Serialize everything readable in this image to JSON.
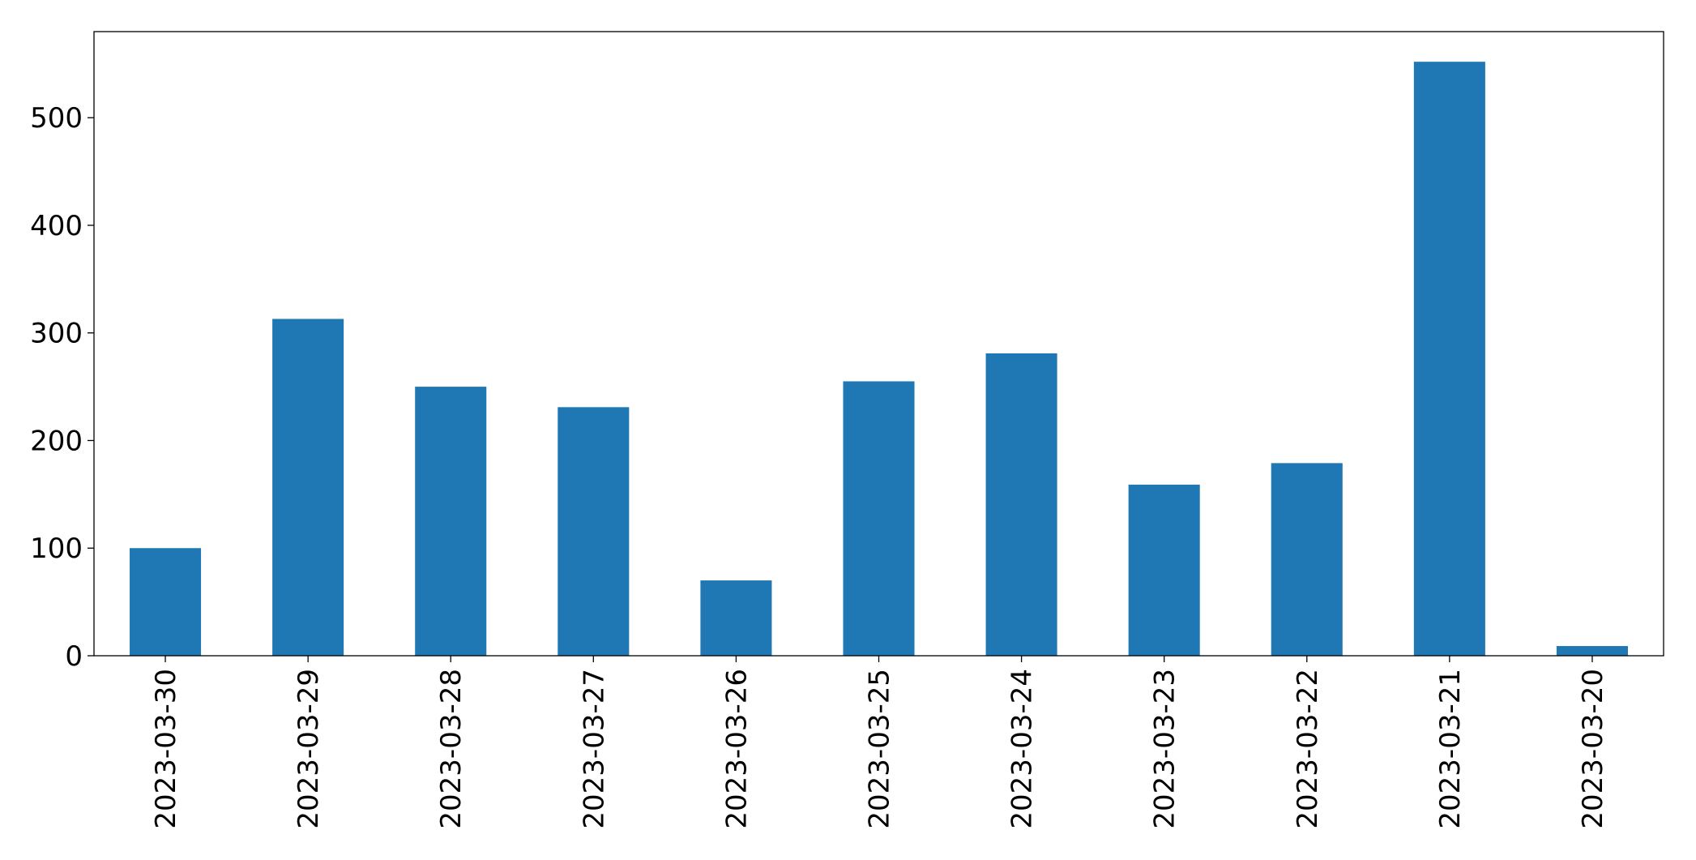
{
  "chart_data": {
    "type": "bar",
    "categories": [
      "2023-03-30",
      "2023-03-29",
      "2023-03-28",
      "2023-03-27",
      "2023-03-26",
      "2023-03-25",
      "2023-03-24",
      "2023-03-23",
      "2023-03-22",
      "2023-03-21",
      "2023-03-20"
    ],
    "values": [
      100,
      313,
      250,
      231,
      70,
      255,
      281,
      159,
      179,
      552,
      9
    ],
    "color": "#1f77b4",
    "ylim": [
      0,
      580
    ],
    "yticks": [
      0,
      100,
      200,
      300,
      400,
      500
    ],
    "grid": false
  }
}
